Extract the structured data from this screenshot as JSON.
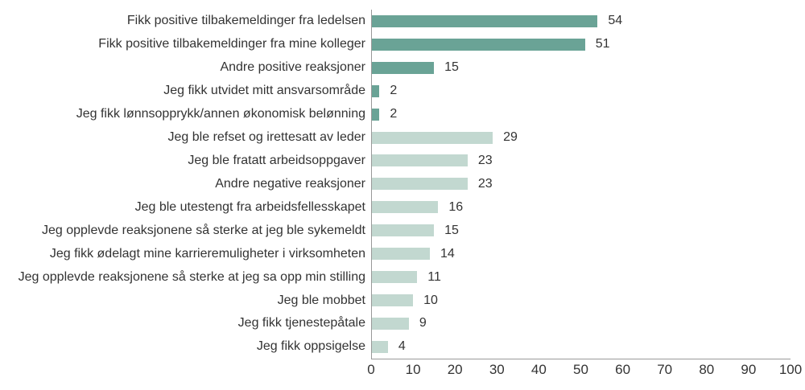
{
  "chart_data": {
    "type": "bar",
    "orientation": "horizontal",
    "title": "",
    "xlabel": "",
    "ylabel": "",
    "xlim": [
      0,
      100
    ],
    "xticks": [
      0,
      10,
      20,
      30,
      40,
      50,
      60,
      70,
      80,
      90,
      100
    ],
    "grid": false,
    "legend": "none",
    "colors": {
      "positive": "#6aa396",
      "negative": "#c2d8d0",
      "axis": "#999999",
      "text": "#333333",
      "background": "#ffffff"
    },
    "items": [
      {
        "label": "Fikk positive tilbakemeldinger fra ledelsen",
        "value": 54,
        "group": "positive"
      },
      {
        "label": "Fikk positive tilbakemeldinger fra mine kolleger",
        "value": 51,
        "group": "positive"
      },
      {
        "label": "Andre positive reaksjoner",
        "value": 15,
        "group": "positive"
      },
      {
        "label": "Jeg fikk utvidet mitt ansvarsområde",
        "value": 2,
        "group": "positive"
      },
      {
        "label": "Jeg fikk lønnsopprykk/annen økonomisk belønning",
        "value": 2,
        "group": "positive"
      },
      {
        "label": "Jeg ble refset og irettesatt av leder",
        "value": 29,
        "group": "negative"
      },
      {
        "label": "Jeg ble fratatt arbeidsoppgaver",
        "value": 23,
        "group": "negative"
      },
      {
        "label": "Andre negative reaksjoner",
        "value": 23,
        "group": "negative"
      },
      {
        "label": "Jeg ble utestengt fra arbeidsfellesskapet",
        "value": 16,
        "group": "negative"
      },
      {
        "label": "Jeg opplevde reaksjonene så sterke at jeg ble sykemeldt",
        "value": 15,
        "group": "negative"
      },
      {
        "label": "Jeg fikk ødelagt mine karrieremuligheter i virksomheten",
        "value": 14,
        "group": "negative"
      },
      {
        "label": "Jeg opplevde reaksjonene så sterke at jeg sa opp min stilling",
        "value": 11,
        "group": "negative"
      },
      {
        "label": "Jeg ble mobbet",
        "value": 10,
        "group": "negative"
      },
      {
        "label": "Jeg fikk tjenestepåtale",
        "value": 9,
        "group": "negative"
      },
      {
        "label": "Jeg fikk oppsigelse",
        "value": 4,
        "group": "negative"
      }
    ]
  }
}
